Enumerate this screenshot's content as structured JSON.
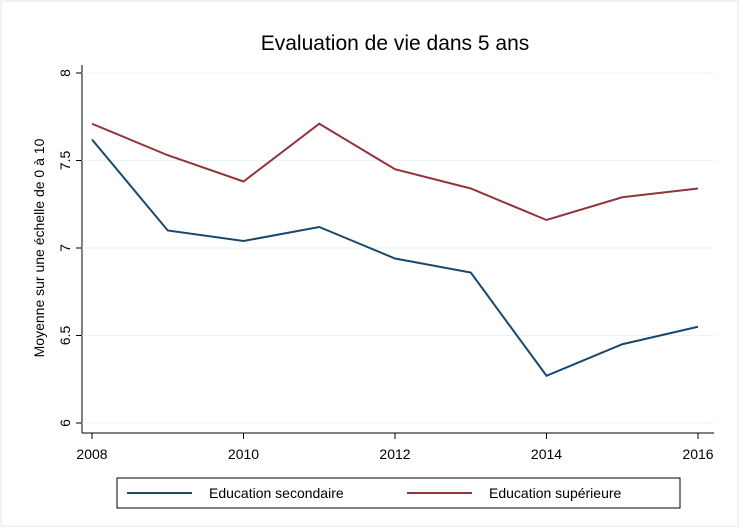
{
  "chart_data": {
    "type": "line",
    "title": "Evaluation de vie dans 5 ans",
    "y_label": "Moyenne sur une échelle de 0 à 10",
    "x": [
      2008,
      2009,
      2010,
      2011,
      2012,
      2013,
      2014,
      2015,
      2016
    ],
    "series": [
      {
        "name": "Education secondaire",
        "color": "#1a476f",
        "values": [
          7.62,
          7.1,
          7.04,
          7.12,
          6.94,
          6.86,
          6.27,
          6.45,
          6.55
        ]
      },
      {
        "name": "Education supérieure",
        "color": "#90353b",
        "values": [
          7.71,
          7.53,
          7.38,
          7.71,
          7.45,
          7.34,
          7.16,
          7.29,
          7.34
        ]
      }
    ],
    "xlim": [
      2008,
      2016
    ],
    "xticks": [
      2008,
      2010,
      2012,
      2014,
      2016
    ],
    "ylim": [
      6,
      8
    ],
    "yticks": [
      6,
      6.5,
      7,
      7.5,
      8
    ],
    "grid": true,
    "legend": "bottom"
  }
}
